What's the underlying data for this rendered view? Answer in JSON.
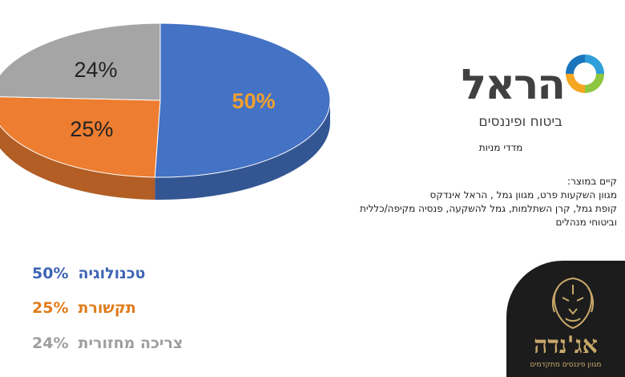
{
  "chart_data": {
    "type": "pie",
    "categories": [
      "טכנולוגיה",
      "תקשורת",
      "צריכה מחזורית"
    ],
    "values": [
      50,
      25,
      24
    ],
    "value_labels": [
      "50%",
      "25%",
      "24%"
    ],
    "colors": [
      "#4472c4",
      "#ed7d31",
      "#a5a5a5"
    ],
    "label_colors": [
      "#f0a030",
      "#222222",
      "#222222"
    ],
    "style": "3d-tilted"
  },
  "legend": [
    {
      "label": "טכנולוגיה",
      "value": "50%",
      "color": "#3d64b4"
    },
    {
      "label": "תקשורת",
      "value": "25%",
      "color": "#e07c1a"
    },
    {
      "label": "צריכה מחזורית",
      "value": "24%",
      "color": "#9e9e9e"
    }
  ],
  "harel": {
    "wordmark": "הראל",
    "tagline": "ביטוח ופיננסים"
  },
  "subtitle": "מדדי מניות",
  "products": {
    "heading": "קיים במוצר:",
    "lines": [
      "מגוון השקעות פרט, מגוון גמל , הראל אינדקס",
      "קופת גמל, קרן השתלמות, גמל להשקעה, פנסיה מקיפה/כללית",
      "וביטוחי מנהלים"
    ]
  },
  "agenda": {
    "name": "אג'נדה",
    "tagline": "מגוון פיננסים מתקדמים"
  },
  "icons": [
    "harel-swirl-icon",
    "lion-icon"
  ]
}
